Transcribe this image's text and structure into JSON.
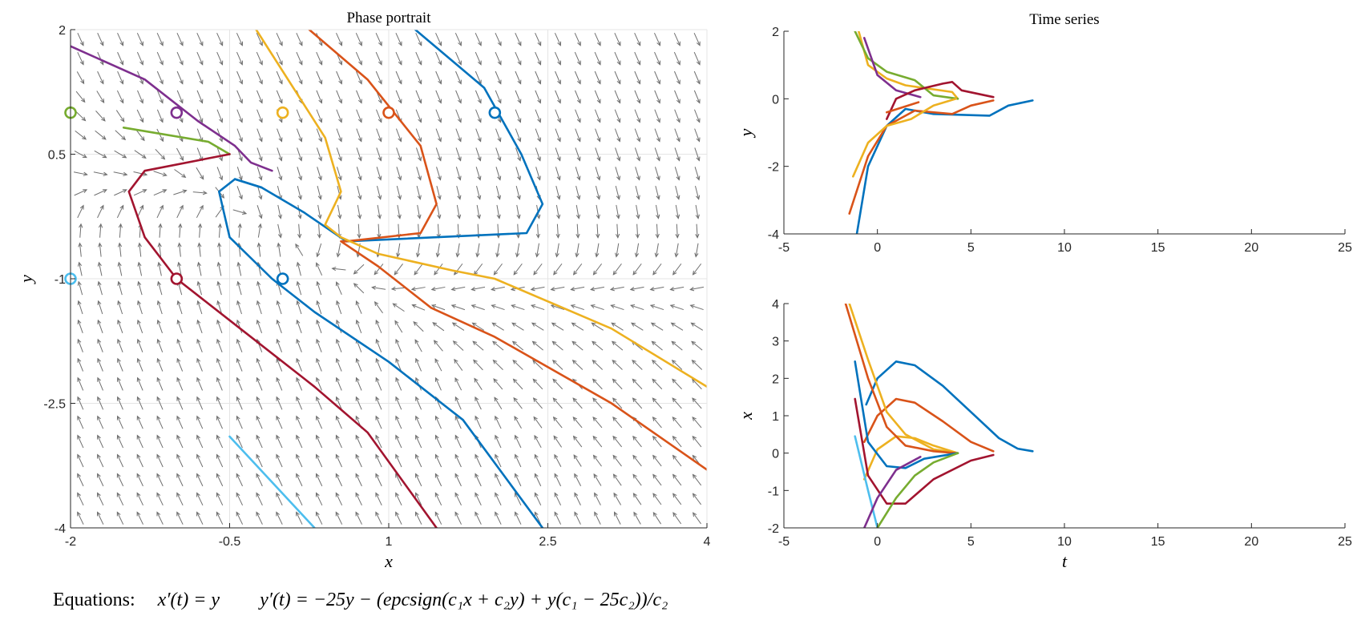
{
  "chart_data": [
    {
      "type": "line",
      "title": "Phase portrait",
      "xlabel": "x",
      "ylabel": "y",
      "xlim": [
        -2,
        4
      ],
      "ylim": [
        -4,
        2
      ],
      "xticks": [
        -2,
        -0.5,
        1,
        2.5,
        4
      ],
      "yticks": [
        -4,
        -2.5,
        -1,
        0.5,
        2
      ],
      "xtick_labels": [
        "-2",
        "-0.5",
        "1",
        "2.5",
        "4"
      ],
      "ytick_labels": [
        "-4",
        "-2.5",
        "-1",
        "0.5",
        "2"
      ],
      "grid": true,
      "vector_field": true,
      "initial_points_marker": "open-circle",
      "series": [
        {
          "color": "#0072BD",
          "start": [
            2,
            1
          ],
          "points": [
            [
              1.25,
              2
            ],
            [
              1.9,
              1.3
            ],
            [
              2.25,
              0.5
            ],
            [
              2.45,
              -0.1
            ],
            [
              2.3,
              -0.45
            ],
            [
              0.6,
              -0.55
            ],
            [
              0.2,
              -0.2
            ],
            [
              -0.2,
              0.1
            ],
            [
              -0.45,
              0.2
            ],
            [
              -0.6,
              0.05
            ],
            [
              -0.5,
              -0.5
            ],
            [
              -0.1,
              -1
            ],
            [
              0.3,
              -1.4
            ],
            [
              1,
              -2
            ],
            [
              1.7,
              -2.7
            ],
            [
              2.45,
              -4
            ]
          ]
        },
        {
          "color": "#D95319",
          "start": [
            1,
            1
          ],
          "points": [
            [
              0.25,
              2
            ],
            [
              0.8,
              1.4
            ],
            [
              1.3,
              0.6
            ],
            [
              1.45,
              -0.1
            ],
            [
              1.3,
              -0.45
            ],
            [
              0.6,
              -0.55
            ],
            [
              0.55,
              -0.55
            ],
            [
              0.9,
              -0.85
            ],
            [
              1.4,
              -1.35
            ],
            [
              2,
              -1.7
            ],
            [
              3.1,
              -2.5
            ],
            [
              4,
              -3.3
            ]
          ]
        },
        {
          "color": "#EDB120",
          "start": [
            0,
            1
          ],
          "points": [
            [
              -0.25,
              2
            ],
            [
              0.1,
              1.3
            ],
            [
              0.4,
              0.7
            ],
            [
              0.55,
              0.05
            ],
            [
              0.4,
              -0.35
            ],
            [
              0.55,
              -0.5
            ],
            [
              0.9,
              -0.7
            ],
            [
              1.6,
              -0.9
            ],
            [
              2,
              -1
            ],
            [
              3.1,
              -1.6
            ],
            [
              4,
              -2.3
            ]
          ]
        },
        {
          "color": "#7E2F8E",
          "start": [
            -1,
            1
          ],
          "points": [
            [
              -2,
              1.8
            ],
            [
              -1.3,
              1.4
            ],
            [
              -0.8,
              0.9
            ],
            [
              -0.45,
              0.6
            ],
            [
              -0.3,
              0.4
            ],
            [
              -0.1,
              0.3
            ]
          ]
        },
        {
          "color": "#77AC30",
          "start": [
            -2,
            1
          ],
          "points": [
            [
              -1.5,
              0.82
            ],
            [
              -0.7,
              0.65
            ],
            [
              -0.5,
              0.5
            ]
          ]
        },
        {
          "color": "#4DBEEE",
          "start": [
            -2,
            -1
          ],
          "points": [
            [
              -0.5,
              -2.9
            ],
            [
              0.3,
              -4
            ]
          ]
        },
        {
          "color": "#A2142F",
          "start": [
            -1,
            -1
          ],
          "points": [
            [
              -0.5,
              0.5
            ],
            [
              -1.3,
              0.3
            ],
            [
              -1.45,
              0.05
            ],
            [
              -1.3,
              -0.5
            ],
            [
              -1,
              -1
            ],
            [
              -0.4,
              -1.6
            ],
            [
              0.3,
              -2.3
            ],
            [
              0.8,
              -2.85
            ],
            [
              1.45,
              -4
            ]
          ]
        },
        {
          "color": "#0072BD",
          "start": [
            0,
            -1
          ],
          "points": [
            [
              -0.2,
              0.1
            ],
            [
              -0.45,
              0.2
            ]
          ]
        }
      ]
    },
    {
      "type": "line",
      "title": "Time series",
      "xlabel": "",
      "ylabel": "y",
      "xlim": [
        -5,
        25
      ],
      "ylim": [
        -4,
        2
      ],
      "xticks": [
        -5,
        0,
        5,
        10,
        15,
        20,
        25
      ],
      "yticks": [
        -4,
        -2,
        0,
        2
      ],
      "xtick_labels": [
        "-5",
        "0",
        "5",
        "10",
        "15",
        "20",
        "25"
      ],
      "ytick_labels": [
        "-4",
        "-2",
        "0",
        "2"
      ],
      "grid": false,
      "series": [
        {
          "color": "#0072BD",
          "points": [
            [
              -1.1,
              -4
            ],
            [
              -0.5,
              -2
            ],
            [
              0.5,
              -0.8
            ],
            [
              1.5,
              -0.3
            ],
            [
              3,
              -0.45
            ],
            [
              6,
              -0.5
            ],
            [
              7,
              -0.2
            ],
            [
              8.3,
              -0.05
            ]
          ]
        },
        {
          "color": "#D95319",
          "points": [
            [
              -1.5,
              -3.4
            ],
            [
              -0.5,
              -1.7
            ],
            [
              0.5,
              -0.8
            ],
            [
              2,
              -0.35
            ],
            [
              4,
              -0.45
            ],
            [
              5,
              -0.2
            ],
            [
              6.2,
              -0.05
            ]
          ]
        },
        {
          "color": "#EDB120",
          "points": [
            [
              -1,
              2
            ],
            [
              -0.5,
              1
            ],
            [
              0.5,
              0.6
            ],
            [
              1.5,
              0.4
            ],
            [
              4,
              0.2
            ],
            [
              4.3,
              0
            ]
          ]
        },
        {
          "color": "#77AC30",
          "points": [
            [
              -1.2,
              2
            ],
            [
              -0.5,
              1.2
            ],
            [
              0.5,
              0.8
            ],
            [
              2,
              0.55
            ],
            [
              3,
              0.1
            ],
            [
              4.3,
              0
            ]
          ]
        },
        {
          "color": "#7E2F8E",
          "points": [
            [
              -0.7,
              1.8
            ],
            [
              0,
              0.7
            ],
            [
              1,
              0.25
            ],
            [
              2.3,
              0.05
            ]
          ]
        },
        {
          "color": "#A2142F",
          "points": [
            [
              0.5,
              -0.6
            ],
            [
              1,
              0
            ],
            [
              2,
              0.25
            ],
            [
              3.5,
              0.45
            ],
            [
              4,
              0.5
            ],
            [
              4.5,
              0.25
            ],
            [
              6.2,
              0.05
            ]
          ]
        },
        {
          "color": "#EDB120",
          "points": [
            [
              -1.3,
              -2.3
            ],
            [
              -0.5,
              -1.3
            ],
            [
              0.5,
              -0.8
            ],
            [
              1.8,
              -0.6
            ],
            [
              3,
              -0.2
            ],
            [
              4.2,
              0
            ]
          ]
        },
        {
          "color": "#D95319",
          "points": [
            [
              0.5,
              -0.4
            ],
            [
              2.2,
              -0.1
            ]
          ]
        }
      ]
    },
    {
      "type": "line",
      "title": "",
      "xlabel": "t",
      "ylabel": "x",
      "xlim": [
        -5,
        25
      ],
      "ylim": [
        -2,
        4
      ],
      "xticks": [
        -5,
        0,
        5,
        10,
        15,
        20,
        25
      ],
      "yticks": [
        -2,
        -1,
        0,
        1,
        2,
        3,
        4
      ],
      "xtick_labels": [
        "-5",
        "0",
        "5",
        "10",
        "15",
        "20",
        "25"
      ],
      "ytick_labels": [
        "-2",
        "-1",
        "0",
        "1",
        "2",
        "3",
        "4"
      ],
      "grid": false,
      "series": [
        {
          "color": "#0072BD",
          "points": [
            [
              -0.6,
              1.3
            ],
            [
              0,
              2
            ],
            [
              1,
              2.45
            ],
            [
              2,
              2.35
            ],
            [
              3.5,
              1.8
            ],
            [
              5,
              1.1
            ],
            [
              6.5,
              0.4
            ],
            [
              7.5,
              0.12
            ],
            [
              8.3,
              0.05
            ]
          ]
        },
        {
          "color": "#D95319",
          "points": [
            [
              -0.7,
              0.3
            ],
            [
              0,
              1
            ],
            [
              1,
              1.45
            ],
            [
              2,
              1.35
            ],
            [
              3.5,
              0.85
            ],
            [
              5,
              0.3
            ],
            [
              6.2,
              0.05
            ]
          ]
        },
        {
          "color": "#EDB120",
          "points": [
            [
              -0.7,
              -0.7
            ],
            [
              0,
              0.1
            ],
            [
              1,
              0.45
            ],
            [
              2,
              0.4
            ],
            [
              3,
              0.2
            ],
            [
              4.3,
              0
            ]
          ]
        },
        {
          "color": "#EDB120",
          "points": [
            [
              -1.5,
              4
            ],
            [
              -0.5,
              2.5
            ],
            [
              0.5,
              1.1
            ],
            [
              1.5,
              0.5
            ],
            [
              3,
              0.1
            ],
            [
              4.3,
              0
            ]
          ]
        },
        {
          "color": "#D95319",
          "points": [
            [
              -1.7,
              4
            ],
            [
              -0.5,
              2
            ],
            [
              0.5,
              0.7
            ],
            [
              1.5,
              0.2
            ],
            [
              3,
              0.05
            ],
            [
              4.2,
              0
            ]
          ]
        },
        {
          "color": "#0072BD",
          "points": [
            [
              -1.2,
              2.45
            ],
            [
              -0.5,
              0.3
            ],
            [
              0.5,
              -0.35
            ],
            [
              1.5,
              -0.4
            ],
            [
              2.5,
              -0.15
            ],
            [
              4.3,
              0
            ]
          ]
        },
        {
          "color": "#A2142F",
          "points": [
            [
              -1.2,
              1.45
            ],
            [
              -0.5,
              -0.6
            ],
            [
              0.5,
              -1.35
            ],
            [
              1.5,
              -1.35
            ],
            [
              3,
              -0.7
            ],
            [
              5,
              -0.2
            ],
            [
              6.2,
              -0.05
            ]
          ]
        },
        {
          "color": "#4DBEEE",
          "points": [
            [
              -1.2,
              0.45
            ],
            [
              -0.5,
              -1
            ],
            [
              0,
              -2
            ]
          ]
        },
        {
          "color": "#7E2F8E",
          "points": [
            [
              -0.7,
              -2
            ],
            [
              0,
              -1.2
            ],
            [
              1,
              -0.45
            ],
            [
              2.3,
              -0.1
            ]
          ]
        },
        {
          "color": "#77AC30",
          "points": [
            [
              0,
              -2
            ],
            [
              1,
              -1.2
            ],
            [
              2,
              -0.6
            ],
            [
              3,
              -0.25
            ],
            [
              4.3,
              0
            ]
          ]
        }
      ]
    }
  ],
  "equations": {
    "label": "Equations:",
    "eq1": "x′(t) = y",
    "eq2": "y′(t) = −25y − (epcsign(c₁x + c₂y) + y(c₁ − 25c₂))/c₂"
  }
}
